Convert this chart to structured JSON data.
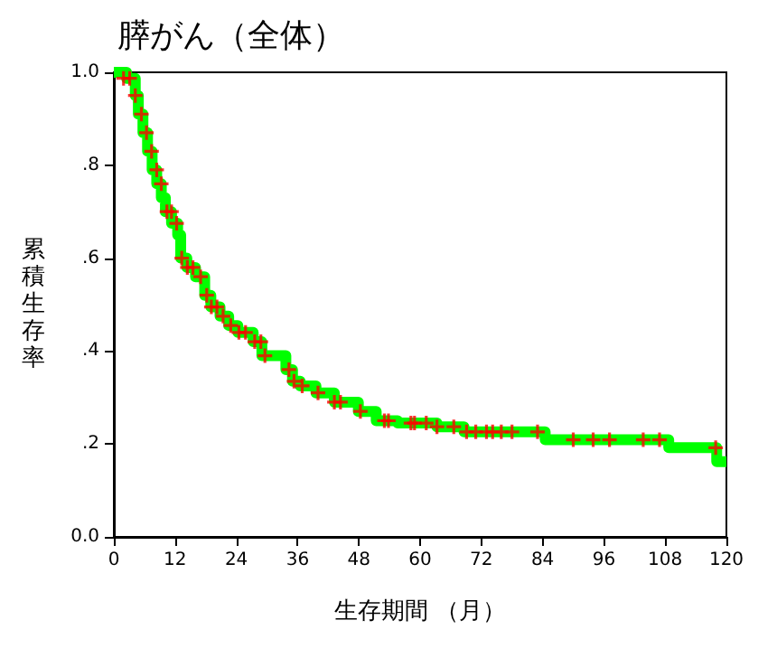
{
  "chart_data": {
    "type": "step",
    "title": "膵がん（全体）",
    "xlabel": "生存期間 （月）",
    "ylabel": "累積生存率",
    "xlim": [
      0,
      120
    ],
    "xticks": [
      0,
      12,
      24,
      36,
      48,
      60,
      72,
      84,
      96,
      108,
      120
    ],
    "ylim": [
      0,
      1
    ],
    "yticks": [
      {
        "value": 0,
        "label": "0.0"
      },
      {
        "value": 0.2,
        "label": ".2"
      },
      {
        "value": 0.4,
        "label": ".4"
      },
      {
        "value": 0.6,
        "label": ".6"
      },
      {
        "value": 0.8,
        "label": ".8"
      },
      {
        "value": 1,
        "label": "1.0"
      }
    ],
    "grid": false,
    "series": [
      {
        "color": "#00ff00",
        "x": [
          0,
          2.5,
          4.2,
          4.8,
          5.7,
          6.6,
          7.5,
          8.4,
          9.3,
          10.1,
          11.3,
          12.5,
          13.1,
          14.3,
          16,
          17.8,
          19,
          20.8,
          22.5,
          24.3,
          27.3,
          29,
          33.7,
          35,
          36.5,
          39.6,
          43.2,
          47.9,
          51.4,
          55.6,
          63.3,
          68.6,
          84.5,
          108.7,
          118.1,
          120
        ],
        "values": [
          1,
          0.987,
          0.95,
          0.91,
          0.87,
          0.83,
          0.79,
          0.76,
          0.73,
          0.7,
          0.675,
          0.65,
          0.6,
          0.58,
          0.56,
          0.52,
          0.495,
          0.475,
          0.455,
          0.44,
          0.42,
          0.39,
          0.36,
          0.335,
          0.325,
          0.31,
          0.29,
          0.27,
          0.25,
          0.245,
          0.237,
          0.226,
          0.209,
          0.192,
          0.162,
          0.162
        ]
      },
      {
        "type": "scatter",
        "color": "#ff0000",
        "marker": "cross",
        "x": [
          1.9,
          3.1,
          4.2,
          5.4,
          6.4,
          7.4,
          8.4,
          9.3,
          10.4,
          11.3,
          12.3,
          13.3,
          14.4,
          15.5,
          17,
          18.2,
          19.1,
          20.2,
          21.4,
          22.9,
          24.5,
          25.8,
          27.6,
          28.8,
          29.6,
          34.3,
          35.3,
          36.9,
          40,
          43.2,
          44.4,
          48.3,
          53,
          53.8,
          58.2,
          58.9,
          61.2,
          63.3,
          66.6,
          69.1,
          70.9,
          73,
          74.2,
          75.9,
          78,
          83,
          90,
          93.9,
          97.1,
          103.7,
          106.9,
          117.9
        ],
        "values": [
          0.987,
          0.987,
          0.95,
          0.91,
          0.87,
          0.83,
          0.79,
          0.76,
          0.7,
          0.7,
          0.675,
          0.6,
          0.58,
          0.58,
          0.56,
          0.52,
          0.495,
          0.495,
          0.475,
          0.455,
          0.44,
          0.44,
          0.42,
          0.42,
          0.39,
          0.36,
          0.335,
          0.325,
          0.31,
          0.29,
          0.29,
          0.27,
          0.25,
          0.25,
          0.245,
          0.245,
          0.245,
          0.237,
          0.237,
          0.226,
          0.226,
          0.226,
          0.226,
          0.226,
          0.226,
          0.226,
          0.209,
          0.209,
          0.209,
          0.209,
          0.209,
          0.192
        ]
      }
    ]
  }
}
